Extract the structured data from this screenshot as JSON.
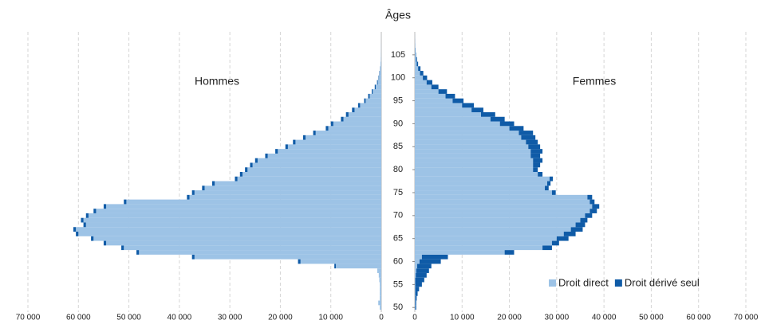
{
  "chart_data": {
    "type": "pyramid",
    "y_label": "Âges",
    "left_label": "Hommes",
    "right_label": "Femmes",
    "ages": [
      50,
      51,
      52,
      53,
      54,
      55,
      56,
      57,
      58,
      59,
      60,
      61,
      62,
      63,
      64,
      65,
      66,
      67,
      68,
      69,
      70,
      71,
      72,
      73,
      74,
      75,
      76,
      77,
      78,
      79,
      80,
      81,
      82,
      83,
      84,
      85,
      86,
      87,
      88,
      89,
      90,
      91,
      92,
      93,
      94,
      95,
      96,
      97,
      98,
      99,
      100,
      101,
      102,
      103,
      104,
      105,
      106,
      107,
      108,
      109
    ],
    "series": [
      {
        "name": "Droit direct",
        "color": "#9dc3e6",
        "men": [
          300,
          600,
          300,
          300,
          300,
          300,
          400,
          500,
          800,
          9000,
          16000,
          37000,
          48000,
          51000,
          54500,
          57000,
          60000,
          60500,
          58500,
          59000,
          58000,
          56500,
          54500,
          50500,
          38000,
          37000,
          35000,
          33000,
          28500,
          27500,
          26500,
          25500,
          24500,
          22500,
          20500,
          18500,
          17000,
          15000,
          13000,
          10500,
          9500,
          7500,
          6500,
          5300,
          4200,
          3100,
          2300,
          1700,
          1100,
          700,
          450,
          300,
          180,
          100,
          60,
          40,
          25,
          15,
          8,
          4
        ],
        "women": [
          100,
          100,
          100,
          100,
          100,
          100,
          100,
          200,
          300,
          500,
          1000,
          1500,
          19000,
          27000,
          29000,
          30000,
          31500,
          33000,
          34000,
          35000,
          36000,
          37000,
          37500,
          37000,
          36500,
          29000,
          27500,
          28000,
          28500,
          26000,
          25000,
          25000,
          25000,
          24500,
          24500,
          24000,
          23500,
          22500,
          22000,
          20000,
          18000,
          16000,
          14000,
          12000,
          10000,
          8000,
          6500,
          5000,
          3500,
          2500,
          1700,
          1100,
          700,
          400,
          250,
          150,
          80,
          40,
          20,
          10
        ]
      },
      {
        "name": "Droit dérivé seul",
        "color": "#0f5ba7",
        "men": [
          0,
          0,
          0,
          0,
          0,
          0,
          0,
          0,
          0,
          300,
          500,
          500,
          500,
          500,
          500,
          500,
          500,
          500,
          500,
          500,
          500,
          500,
          500,
          500,
          500,
          500,
          500,
          500,
          500,
          500,
          500,
          500,
          500,
          500,
          500,
          500,
          500,
          500,
          500,
          500,
          500,
          500,
          500,
          500,
          400,
          300,
          300,
          200,
          200,
          150,
          100,
          80,
          50,
          30,
          20,
          10,
          5,
          5,
          3,
          2
        ],
        "women": [
          200,
          200,
          300,
          500,
          800,
          1400,
          1900,
          2300,
          2700,
          3000,
          4500,
          5500,
          2000,
          2000,
          1500,
          2500,
          2500,
          2500,
          2000,
          1500,
          1500,
          1500,
          1500,
          1000,
          1000,
          800,
          800,
          700,
          700,
          1000,
          1000,
          1500,
          2000,
          2000,
          2500,
          2500,
          2500,
          3000,
          3000,
          3000,
          3000,
          3000,
          3000,
          2500,
          2500,
          2300,
          2000,
          1800,
          1500,
          1200,
          900,
          700,
          500,
          300,
          200,
          100,
          60,
          30,
          15,
          5
        ]
      }
    ],
    "xlim": [
      0,
      70000
    ],
    "xticks_left": [
      {
        "value": 70000,
        "label": "70 000"
      },
      {
        "value": 60000,
        "label": "60 000"
      },
      {
        "value": 50000,
        "label": "50 000"
      },
      {
        "value": 40000,
        "label": "40 000"
      },
      {
        "value": 30000,
        "label": "30 000"
      },
      {
        "value": 20000,
        "label": "20 000"
      },
      {
        "value": 10000,
        "label": "10 000"
      },
      0
    ],
    "xticks_right": [
      0,
      {
        "value": 10000,
        "label": "10 000"
      },
      {
        "value": 20000,
        "label": "20 000"
      },
      {
        "value": 30000,
        "label": "30 000"
      },
      {
        "value": 40000,
        "label": "40 000"
      },
      {
        "value": 50000,
        "label": "50 000"
      },
      {
        "value": 60000,
        "label": "60 000"
      },
      {
        "value": 70000,
        "label": "70 000"
      }
    ],
    "ylim": [
      49,
      110
    ],
    "yticks": [
      50,
      55,
      60,
      65,
      70,
      75,
      80,
      85,
      90,
      95,
      100,
      105
    ],
    "grid": true
  }
}
